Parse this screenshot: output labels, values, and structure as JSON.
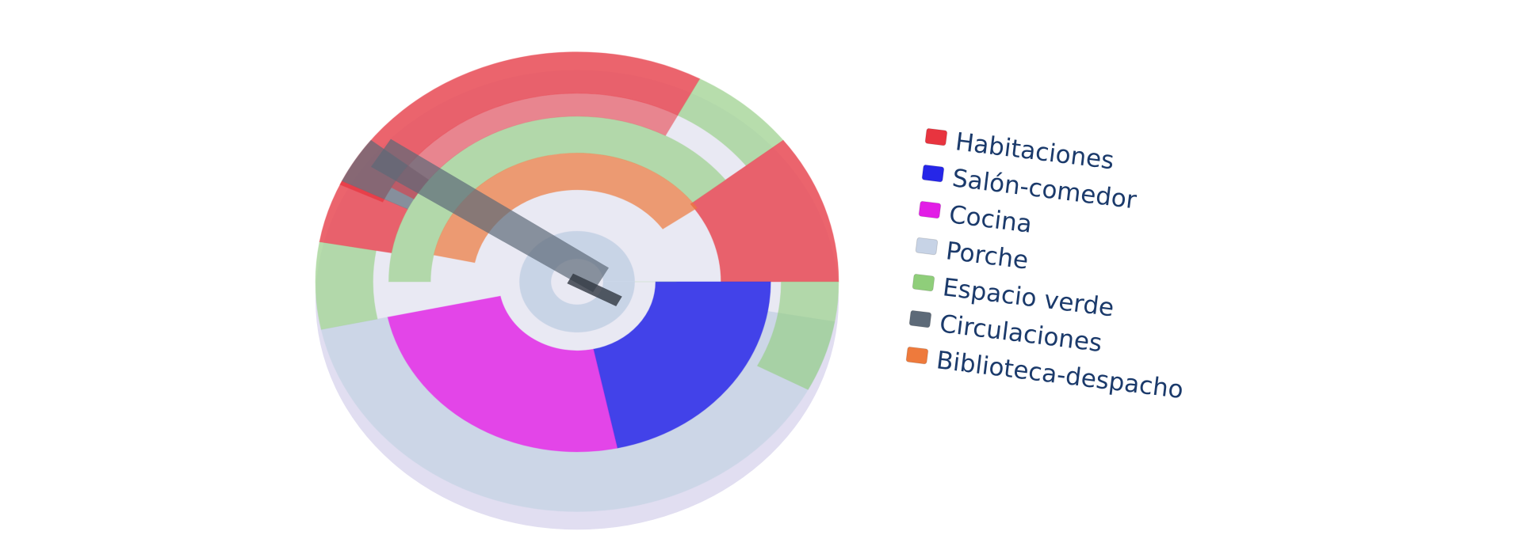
{
  "legend": {
    "items": [
      {
        "label": "Habitaciones",
        "color": "#e8343f"
      },
      {
        "label": "Salón-comedor",
        "color": "#2626e8"
      },
      {
        "label": "Cocina",
        "color": "#e21de6"
      },
      {
        "label": "Porche",
        "color": "#c7d3e6"
      },
      {
        "label": "Espacio verde",
        "color": "#8fce7a"
      },
      {
        "label": "Circulaciones",
        "color": "#5d6a78"
      },
      {
        "label": "Biblioteca-despacho",
        "color": "#ee7a3c"
      }
    ]
  }
}
